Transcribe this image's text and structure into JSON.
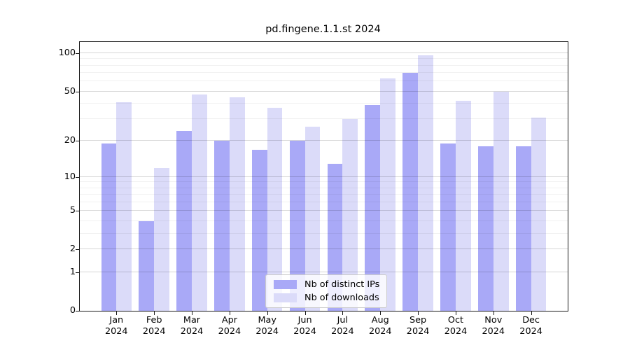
{
  "title": "pd.fingene.1.1.st 2024",
  "colors": {
    "distinct_ips_bar": "#a9a9f7",
    "downloads_bar": "#dbdbf9",
    "axis": "#1a1a1a"
  },
  "legend": {
    "items": [
      {
        "label": "Nb of distinct IPs",
        "color": "#a9a9f7"
      },
      {
        "label": "Nb of downloads",
        "color": "#dbdbf9"
      }
    ]
  },
  "chart_data": {
    "type": "bar",
    "title": "pd.fingene.1.1.st 2024",
    "categories": [
      "Jan\n2024",
      "Feb\n2024",
      "Mar\n2024",
      "Apr\n2024",
      "May\n2024",
      "Jun\n2024",
      "Jul\n2024",
      "Aug\n2024",
      "Sep\n2024",
      "Oct\n2024",
      "Nov\n2024",
      "Dec\n2024"
    ],
    "series": [
      {
        "name": "Nb of distinct IPs",
        "color": "#a9a9f7",
        "values": [
          19,
          4,
          24,
          20,
          17,
          20,
          13,
          39,
          70,
          19,
          18,
          18
        ]
      },
      {
        "name": "Nb of downloads",
        "color": "#dbdbf9",
        "values": [
          41,
          12,
          47,
          45,
          37,
          26,
          30,
          63,
          96,
          42,
          50,
          31
        ]
      }
    ],
    "xlabel": "",
    "ylabel": "",
    "y_scale": "log10(1+value)",
    "y_ticks": [
      0,
      1,
      2,
      5,
      10,
      20,
      50,
      100
    ],
    "y_minor_gridlines": [
      3,
      4,
      6,
      7,
      8,
      9,
      30,
      40,
      60,
      70,
      80,
      90
    ],
    "ylim": [
      0,
      122
    ],
    "grid": true,
    "legend_position": "bottom-center"
  }
}
